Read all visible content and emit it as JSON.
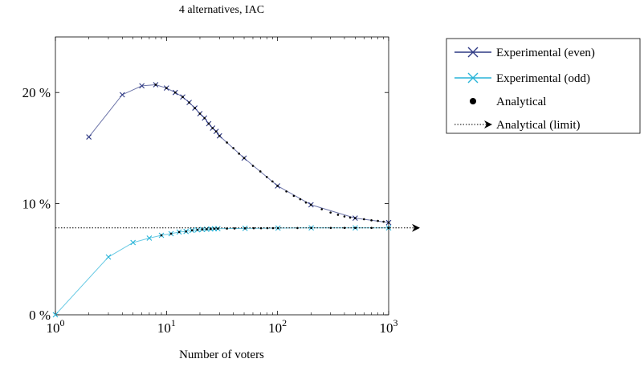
{
  "chart_data": {
    "type": "line",
    "title": "4 alternatives, IAC",
    "xlabel": "Number of voters",
    "ylabel": "",
    "xscale": "log",
    "xlim": [
      1,
      1000
    ],
    "ylim": [
      0,
      25
    ],
    "x_ticks": [
      {
        "value": 1,
        "base": "10",
        "exp": "0"
      },
      {
        "value": 10,
        "base": "10",
        "exp": "1"
      },
      {
        "value": 100,
        "base": "10",
        "exp": "2"
      },
      {
        "value": 1000,
        "base": "10",
        "exp": "3"
      }
    ],
    "y_ticks": [
      {
        "value": 0,
        "label": "0 %"
      },
      {
        "value": 10,
        "label": "10 %"
      },
      {
        "value": 20,
        "label": "20 %"
      }
    ],
    "grid": false,
    "legend_position": "outside-right-top",
    "series": [
      {
        "name": "Experimental (even)",
        "style": "line-cross",
        "color": "#2f3a84",
        "x": [
          2,
          4,
          6,
          8,
          10,
          12,
          14,
          16,
          18,
          20,
          22,
          24,
          26,
          28,
          30,
          50,
          100,
          200,
          500,
          1000
        ],
        "y": [
          16.0,
          19.8,
          20.6,
          20.7,
          20.4,
          20.0,
          19.6,
          19.1,
          18.6,
          18.1,
          17.7,
          17.2,
          16.8,
          16.5,
          16.1,
          14.1,
          11.6,
          9.9,
          8.7,
          8.3
        ]
      },
      {
        "name": "Experimental (odd)",
        "style": "line-cross",
        "color": "#28b4d8",
        "x": [
          1,
          3,
          5,
          7,
          9,
          11,
          13,
          15,
          17,
          19,
          21,
          23,
          25,
          27,
          29,
          51,
          101,
          201,
          501,
          1001
        ],
        "y": [
          0.0,
          5.2,
          6.5,
          6.9,
          7.15,
          7.3,
          7.45,
          7.5,
          7.6,
          7.65,
          7.68,
          7.7,
          7.72,
          7.74,
          7.75,
          7.78,
          7.8,
          7.82,
          7.82,
          7.82
        ]
      },
      {
        "name": "Analytical",
        "style": "dots",
        "color": "#000000",
        "x": [
          8,
          10,
          12,
          14,
          16,
          18,
          20,
          22,
          24,
          26,
          28,
          30,
          35,
          40,
          45,
          50,
          60,
          70,
          80,
          90,
          100,
          120,
          140,
          160,
          180,
          200,
          250,
          300,
          350,
          400,
          450,
          500,
          600,
          700,
          800,
          900,
          1000,
          9,
          11,
          13,
          15,
          17,
          19,
          21,
          23,
          25,
          27,
          29,
          35,
          41,
          51,
          61,
          71,
          81,
          91,
          101,
          151,
          201,
          301,
          401,
          501,
          701,
          1001
        ],
        "y": [
          20.7,
          20.4,
          20.0,
          19.6,
          19.1,
          18.6,
          18.1,
          17.7,
          17.2,
          16.8,
          16.5,
          16.1,
          15.5,
          15.0,
          14.5,
          14.1,
          13.4,
          12.9,
          12.4,
          12.0,
          11.6,
          11.1,
          10.7,
          10.4,
          10.1,
          9.9,
          9.5,
          9.2,
          9.0,
          8.85,
          8.75,
          8.7,
          8.6,
          8.5,
          8.45,
          8.38,
          8.3,
          7.15,
          7.3,
          7.45,
          7.5,
          7.6,
          7.65,
          7.68,
          7.7,
          7.72,
          7.74,
          7.75,
          7.76,
          7.77,
          7.78,
          7.79,
          7.79,
          7.8,
          7.8,
          7.8,
          7.81,
          7.82,
          7.82,
          7.82,
          7.82,
          7.82,
          7.82
        ]
      },
      {
        "name": "Analytical (limit)",
        "style": "dotted-arrow",
        "color": "#000000",
        "x": [
          1000,
          1000
        ],
        "y": [
          7.82,
          7.82
        ]
      }
    ]
  }
}
